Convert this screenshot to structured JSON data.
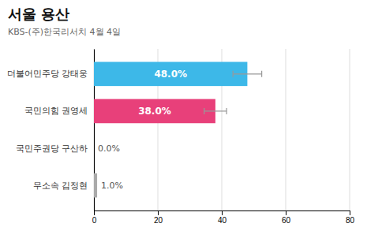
{
  "chart_data": {
    "type": "bar",
    "orientation": "horizontal",
    "title": "서울 용산",
    "subtitle": "KBS-(주)한국리서치 4월 4일",
    "categories": [
      "더불어민주당 강태웅",
      "국민의힘 권영세",
      "국민주권당 구산하",
      "무소속 김정현"
    ],
    "values": [
      48.0,
      38.0,
      0.0,
      1.0
    ],
    "value_labels": [
      "48.0%",
      "38.0%",
      "0.0%",
      "1.0%"
    ],
    "errors": [
      4.5,
      3.5,
      0.0,
      0.0
    ],
    "colors": [
      "#3DB8E8",
      "#E8407A",
      "#AAAAAA",
      "#AAAAAA"
    ],
    "xlim": [
      0,
      80
    ],
    "xticks": [
      0,
      20,
      40,
      60,
      80
    ],
    "grid": true,
    "data_labels": true
  }
}
